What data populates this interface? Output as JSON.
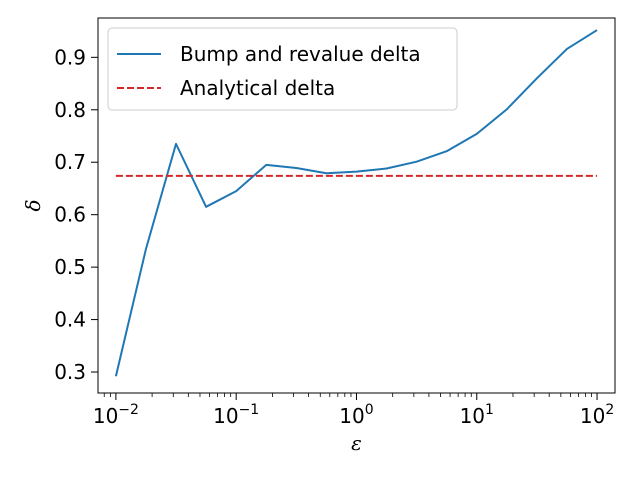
{
  "chart_data": {
    "type": "line",
    "xlabel": "ε",
    "ylabel": "δ",
    "xscale": "log",
    "xlim": [
      0.0071,
      141
    ],
    "ylim": [
      0.26,
      0.975
    ],
    "grid": false,
    "legend_position": "top-left",
    "x_ticks": [
      {
        "value": 0.01,
        "base": "10",
        "exp": "−2"
      },
      {
        "value": 0.1,
        "base": "10",
        "exp": "−1"
      },
      {
        "value": 1,
        "base": "10",
        "exp": "0"
      },
      {
        "value": 10,
        "base": "10",
        "exp": "1"
      },
      {
        "value": 100,
        "base": "10",
        "exp": "2"
      }
    ],
    "y_ticks": [
      {
        "value": 0.3,
        "label": "0.3"
      },
      {
        "value": 0.4,
        "label": "0.4"
      },
      {
        "value": 0.5,
        "label": "0.5"
      },
      {
        "value": 0.6,
        "label": "0.6"
      },
      {
        "value": 0.7,
        "label": "0.7"
      },
      {
        "value": 0.8,
        "label": "0.8"
      },
      {
        "value": 0.9,
        "label": "0.9"
      }
    ],
    "series": [
      {
        "name": "Bump and revalue delta",
        "color": "#1f77b4",
        "style": "solid",
        "x": [
          0.01,
          0.0178,
          0.0316,
          0.0562,
          0.1,
          0.178,
          0.316,
          0.562,
          1.0,
          1.78,
          3.16,
          5.62,
          10.0,
          17.8,
          31.6,
          56.2,
          100.0
        ],
        "y": [
          0.292,
          0.535,
          0.735,
          0.615,
          0.645,
          0.695,
          0.689,
          0.679,
          0.682,
          0.688,
          0.701,
          0.721,
          0.754,
          0.801,
          0.86,
          0.916,
          0.952
        ]
      },
      {
        "name": "Analytical delta",
        "color": "#d62728",
        "style": "dashed",
        "x": [
          0.01,
          100.0
        ],
        "y": [
          0.674,
          0.674
        ]
      }
    ]
  }
}
